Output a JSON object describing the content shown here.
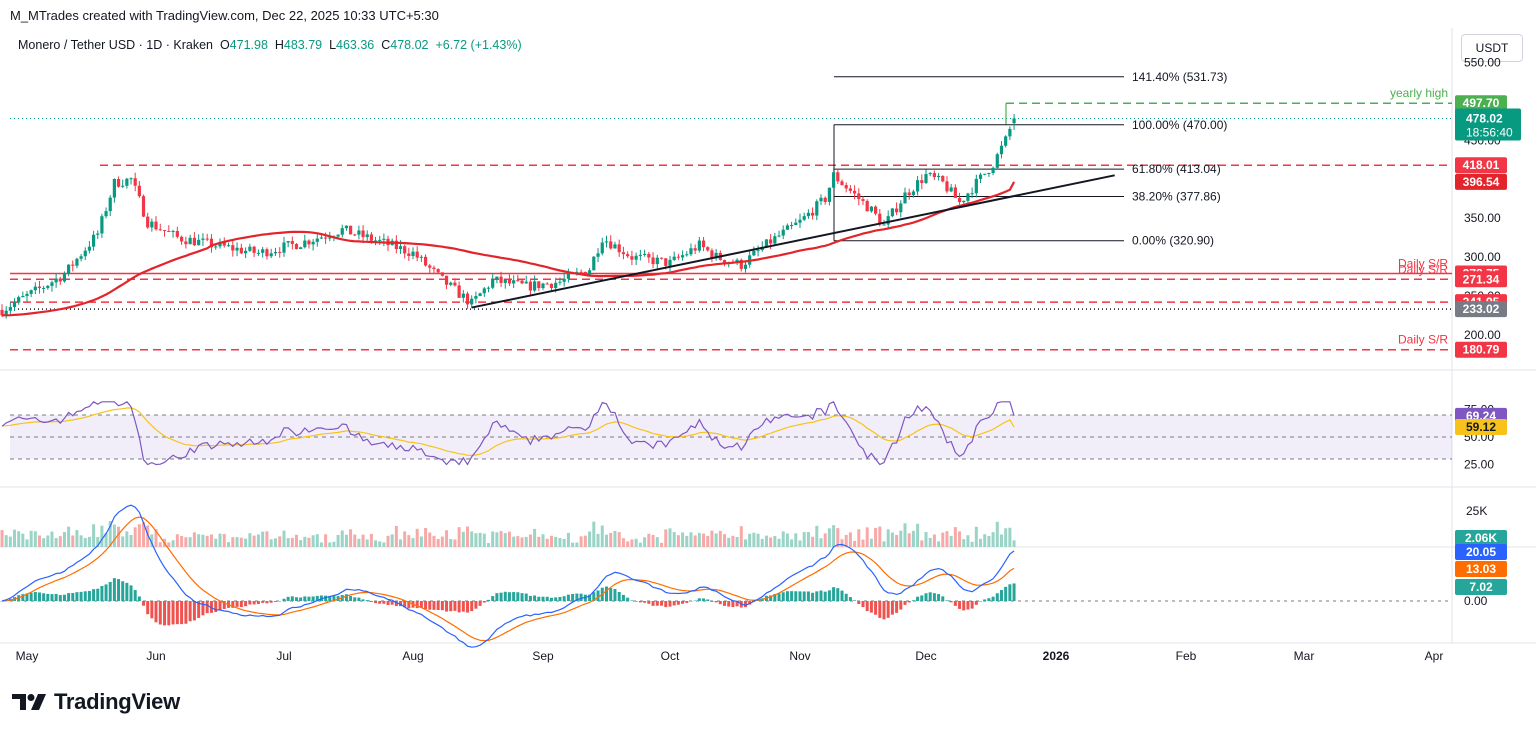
{
  "header": {
    "credit": "M_MTrades created with TradingView.com, Dec 22, 2025 10:33 UTC+5:30",
    "symbol": "Monero / Tether USD · 1D · Kraken",
    "o_label": "O",
    "o_value": "471.98",
    "h_label": "H",
    "h_value": "483.79",
    "l_label": "L",
    "l_value": "463.36",
    "c_label": "C",
    "c_value": "478.02",
    "change": "+6.72 (+1.43%)",
    "currency": "USDT"
  },
  "brand": {
    "name": "TradingView"
  },
  "colors": {
    "up": "#089981",
    "down": "#f23645",
    "ma": "#e3242b",
    "rsi": "#7e57c2",
    "rsi_ma": "#f7c31a",
    "macd": "#2962ff",
    "signal": "#ff6d00",
    "fib": "#131722",
    "last_price": "#089981",
    "yearly_high": "#4caf50"
  },
  "chart_data": [
    {
      "type": "candlestick",
      "title": "Monero / Tether USD · 1D · Kraken",
      "x_ticks": [
        "May",
        "Jun",
        "Jul",
        "Aug",
        "Sep",
        "Oct",
        "Nov",
        "Dec",
        "2026",
        "Feb",
        "Mar",
        "Apr"
      ],
      "y_ticks": [
        "550.00",
        "500.00",
        "450.00",
        "400.00",
        "350.00",
        "300.00",
        "250.00",
        "200.00"
      ],
      "last_price": {
        "value": "478.02",
        "countdown": "18:56:40"
      },
      "price_labels": [
        {
          "value": 497.7,
          "label": "497.70",
          "color": "#4caf50"
        },
        {
          "value": 418.01,
          "label": "418.01",
          "color": "#f23645"
        },
        {
          "value": 396.54,
          "label": "396.54",
          "color": "#e3242b"
        },
        {
          "value": 278.75,
          "label": "278.75",
          "color": "#f23645"
        },
        {
          "value": 271.34,
          "label": "271.34",
          "color": "#f23645"
        },
        {
          "value": 241.95,
          "label": "241.95",
          "color": "#f23645"
        },
        {
          "value": 233.02,
          "label": "233.02",
          "color": "#787b86"
        },
        {
          "value": 180.79,
          "label": "180.79",
          "color": "#f23645"
        }
      ],
      "horizontal_levels": [
        {
          "value": 497.7,
          "style": "dashed",
          "text": "yearly high"
        },
        {
          "value": 418.01,
          "style": "dashed",
          "text": ""
        },
        {
          "value": 278.75,
          "style": "solid",
          "text": "Daily S/R"
        },
        {
          "value": 271.34,
          "style": "dashed",
          "text": "Daily S/R"
        },
        {
          "value": 241.95,
          "style": "dashed",
          "text": ""
        },
        {
          "value": 233.02,
          "style": "dotted",
          "text": ""
        },
        {
          "value": 180.79,
          "style": "dashed",
          "text": "Daily S/R"
        }
      ],
      "fibonacci": [
        {
          "value": 531.73,
          "label": "141.40% (531.73)"
        },
        {
          "value": 470.0,
          "label": "100.00% (470.00)"
        },
        {
          "value": 413.04,
          "label": "61.80% (413.04)"
        },
        {
          "value": 377.86,
          "label": "38.20% (377.86)"
        },
        {
          "value": 320.9,
          "label": "0.00% (320.90)"
        }
      ],
      "trendline": {
        "from": [
          "2025-08-15",
          235
        ],
        "to": [
          "2026-01-15",
          405
        ]
      },
      "ma_series_name": "",
      "ma_last": 396.54,
      "ohlc_last": {
        "open": 471.98,
        "high": 483.79,
        "low": 463.36,
        "close": 478.02
      }
    },
    {
      "type": "line",
      "panel": "RSI",
      "y_ticks": [
        "75.00",
        "50.00",
        "25.00"
      ],
      "bands": [
        30,
        70
      ],
      "rsi_last": {
        "value": 69.24,
        "label": "69.24"
      },
      "rsi_ma_last": {
        "value": 59.12,
        "label": "59.12"
      }
    },
    {
      "type": "bar",
      "panel": "Volume",
      "y_ticks": [
        "25K"
      ],
      "volume_last": {
        "value": 2060,
        "label": "2.06K"
      }
    },
    {
      "type": "line",
      "panel": "MACD",
      "y_ticks": [
        "0.00"
      ],
      "macd_last": {
        "value": 20.05,
        "label": "20.05"
      },
      "signal_last": {
        "value": 13.03,
        "label": "13.03"
      },
      "histogram_last": {
        "value": 7.02,
        "label": "7.02"
      }
    }
  ]
}
